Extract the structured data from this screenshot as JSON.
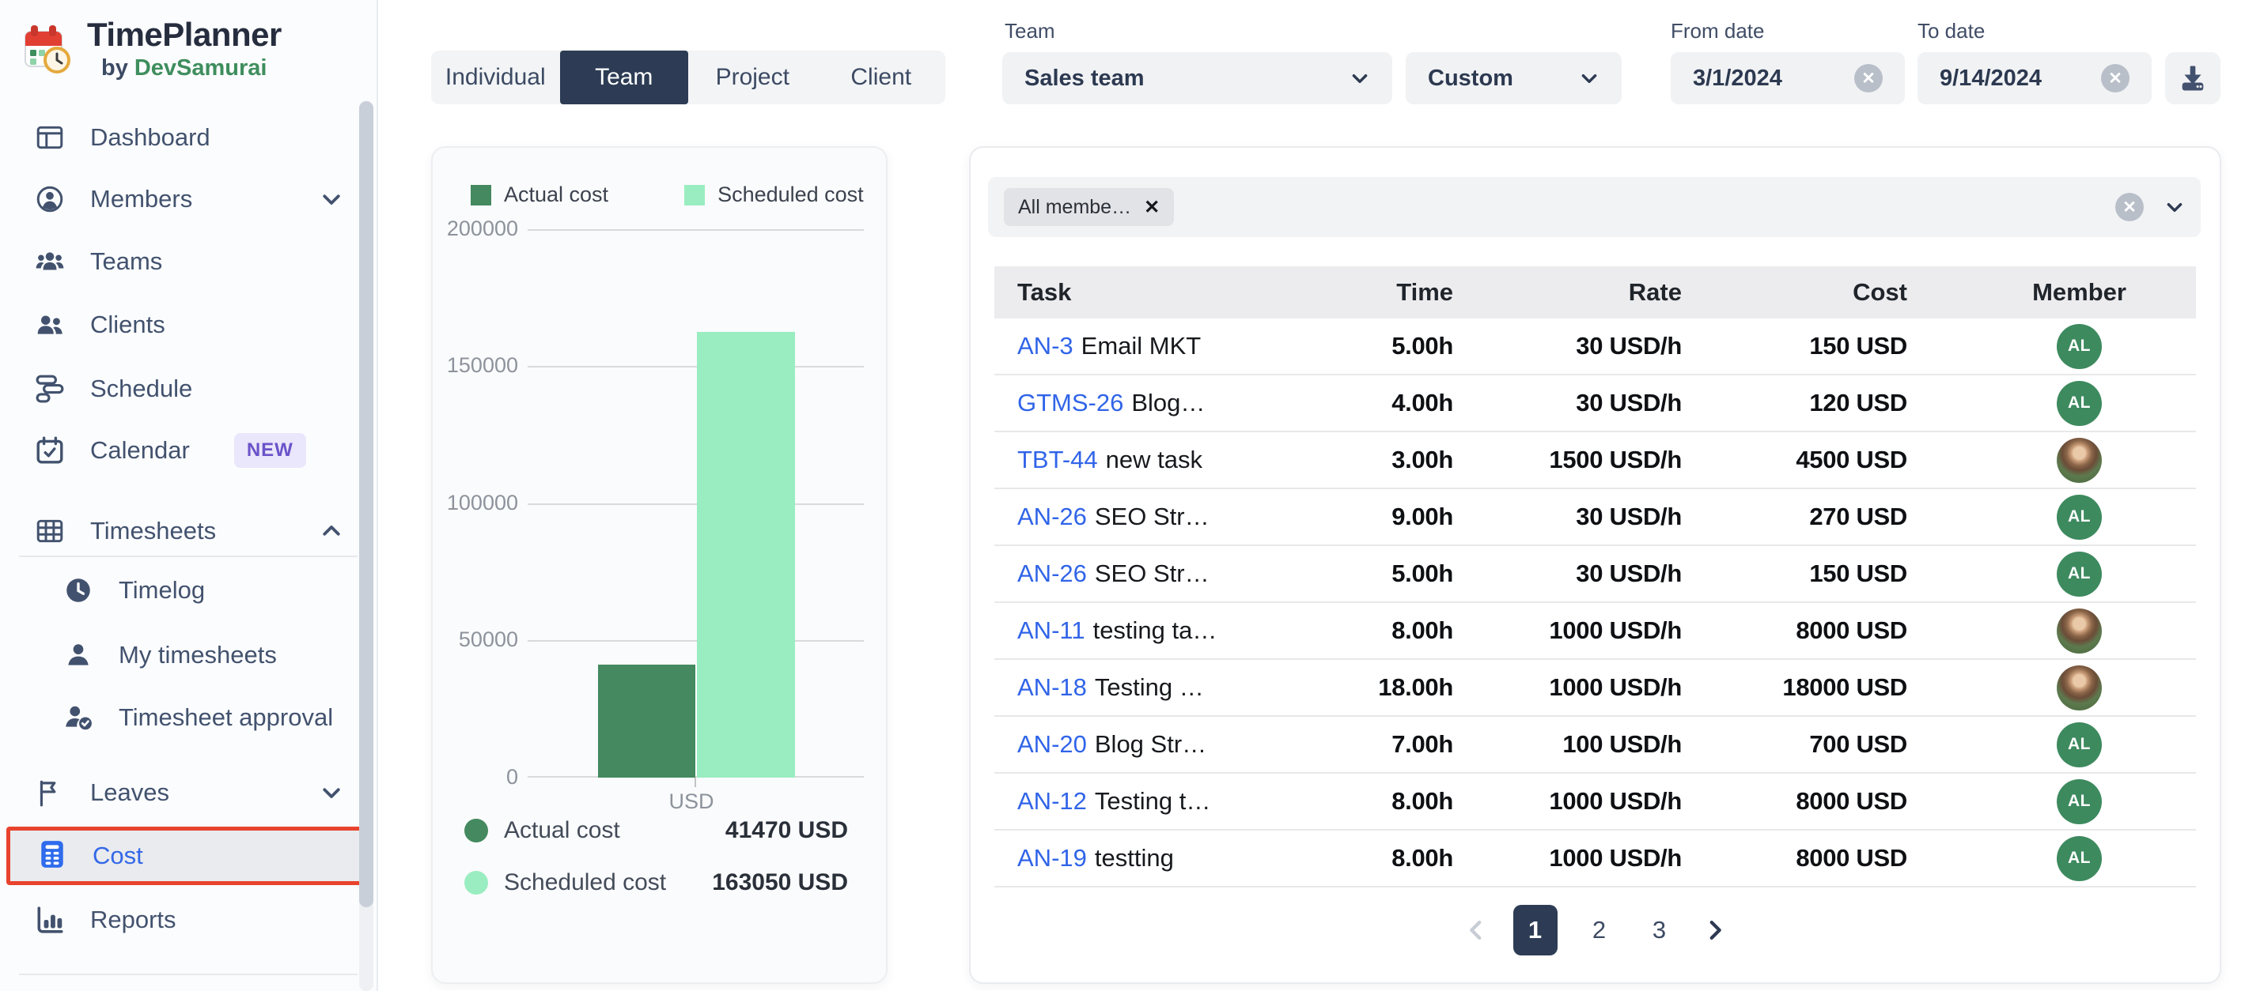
{
  "app": {
    "title": "TimePlanner",
    "subtitle_prefix": "by",
    "subtitle_brand": "DevSamurai"
  },
  "sidebar": {
    "items": [
      {
        "label": "Dashboard"
      },
      {
        "label": "Members"
      },
      {
        "label": "Teams"
      },
      {
        "label": "Clients"
      },
      {
        "label": "Schedule"
      },
      {
        "label": "Calendar",
        "badge": "NEW"
      },
      {
        "label": "Timesheets"
      },
      {
        "label": "Timelog"
      },
      {
        "label": "My timesheets"
      },
      {
        "label": "Timesheet approval"
      },
      {
        "label": "Leaves"
      },
      {
        "label": "Cost"
      },
      {
        "label": "Reports"
      }
    ]
  },
  "tabs": {
    "items": [
      {
        "label": "Individual"
      },
      {
        "label": "Team"
      },
      {
        "label": "Project"
      },
      {
        "label": "Client"
      }
    ],
    "active": "Team"
  },
  "filters": {
    "team_label": "Team",
    "team_value": "Sales team",
    "range_value": "Custom",
    "from_label": "From date",
    "from_value": "3/1/2024",
    "to_label": "To date",
    "to_value": "9/14/2024"
  },
  "glyphs": {
    "close": "✕"
  },
  "chart_data": {
    "type": "bar",
    "categories": [
      "USD"
    ],
    "series": [
      {
        "name": "Actual cost",
        "values": [
          41470
        ],
        "color": "#44895f"
      },
      {
        "name": "Scheduled cost",
        "values": [
          163050
        ],
        "color": "#99edc0"
      }
    ],
    "ylim": [
      0,
      200000
    ],
    "yticks": [
      "200000",
      "150000",
      "100000",
      "50000",
      "0"
    ],
    "xlabel": "USD",
    "grid": true,
    "legend_position": "top",
    "summary": [
      {
        "label": "Actual cost",
        "value": "41470 USD"
      },
      {
        "label": "Scheduled cost",
        "value": "163050 USD"
      }
    ]
  },
  "member_filter": {
    "chip_label": "All membe…"
  },
  "table": {
    "columns": [
      "Task",
      "Time",
      "Rate",
      "Cost",
      "Member"
    ],
    "rows": [
      {
        "id": "AN-3",
        "desc": "Email MKT",
        "time": "5.00h",
        "rate": "30 USD/h",
        "cost": "150 USD",
        "avatar": "AL"
      },
      {
        "id": "GTMS-26",
        "desc": "Blog…",
        "time": "4.00h",
        "rate": "30 USD/h",
        "cost": "120 USD",
        "avatar": "AL"
      },
      {
        "id": "TBT-44",
        "desc": "new task",
        "time": "3.00h",
        "rate": "1500 USD/h",
        "cost": "4500 USD",
        "avatar": "photo"
      },
      {
        "id": "AN-26",
        "desc": "SEO Str…",
        "time": "9.00h",
        "rate": "30 USD/h",
        "cost": "270 USD",
        "avatar": "AL"
      },
      {
        "id": "AN-26",
        "desc": "SEO Str…",
        "time": "5.00h",
        "rate": "30 USD/h",
        "cost": "150 USD",
        "avatar": "AL"
      },
      {
        "id": "AN-11",
        "desc": "testing ta…",
        "time": "8.00h",
        "rate": "1000 USD/h",
        "cost": "8000 USD",
        "avatar": "photo"
      },
      {
        "id": "AN-18",
        "desc": "Testing …",
        "time": "18.00h",
        "rate": "1000 USD/h",
        "cost": "18000 USD",
        "avatar": "photo"
      },
      {
        "id": "AN-20",
        "desc": "Blog Str…",
        "time": "7.00h",
        "rate": "100 USD/h",
        "cost": "700 USD",
        "avatar": "AL"
      },
      {
        "id": "AN-12",
        "desc": "Testing t…",
        "time": "8.00h",
        "rate": "1000 USD/h",
        "cost": "8000 USD",
        "avatar": "AL"
      },
      {
        "id": "AN-19",
        "desc": "testting",
        "time": "8.00h",
        "rate": "1000 USD/h",
        "cost": "8000 USD",
        "avatar": "AL"
      }
    ],
    "pagination": {
      "pages": [
        "1",
        "2",
        "3"
      ],
      "active": "1"
    }
  },
  "colors": {
    "accent_navy": "#2d3c54",
    "link_blue": "#3064e8",
    "highlight_red": "#e8432d",
    "avatar_green": "#3d8a5f",
    "badge_purple": "#6a53c9",
    "brand_green": "#3f8e5e"
  }
}
